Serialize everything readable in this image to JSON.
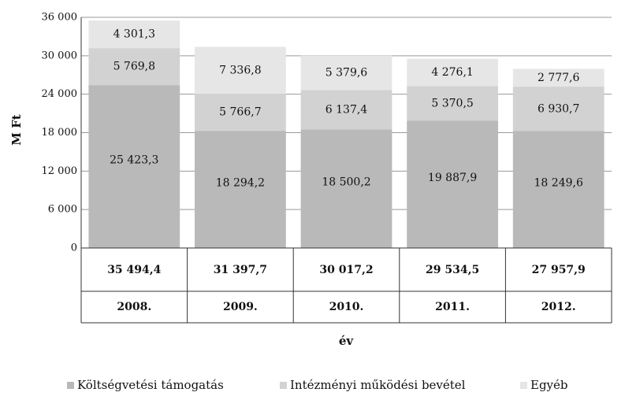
{
  "chart_data": {
    "type": "stacked_bar",
    "y_label": "M Ft",
    "x_label": "év",
    "categories": [
      "2008.",
      "2009.",
      "2010.",
      "2011.",
      "2012."
    ],
    "series": [
      {
        "name": "Költségvetési támogatás",
        "color": "#b9b9b9",
        "values": [
          25423.3,
          18294.2,
          18500.2,
          19887.9,
          18249.6
        ],
        "value_labels": [
          "25 423,3",
          "18 294,2",
          "18 500,2",
          "19 887,9",
          "18 249,6"
        ]
      },
      {
        "name": "Intézményi működési bevétel",
        "color": "#d2d2d2",
        "values": [
          5769.8,
          5766.7,
          6137.4,
          5370.5,
          6930.7
        ],
        "value_labels": [
          "5 769,8",
          "5 766,7",
          "6 137,4",
          "5 370,5",
          "6 930,7"
        ]
      },
      {
        "name": "Egyéb",
        "color": "#e6e6e6",
        "values": [
          4301.3,
          7336.8,
          5379.6,
          4276.1,
          2777.6
        ],
        "value_labels": [
          "4 301,3",
          "7 336,8",
          "5 379,6",
          "4 276,1",
          "2 777,6"
        ]
      }
    ],
    "totals": {
      "values": [
        35494.4,
        31397.7,
        30017.2,
        29534.5,
        27957.9
      ],
      "value_labels": [
        "35 494,4",
        "31 397,7",
        "30 017,2",
        "29 534,5",
        "27 957,9"
      ]
    },
    "ylim": [
      0,
      36000
    ],
    "yticks": [
      0,
      {
        "value": 6000,
        "label": "6 000"
      },
      {
        "value": 12000,
        "label": "12 000"
      },
      {
        "value": 18000,
        "label": "18 000"
      },
      {
        "value": 24000,
        "label": "24 000"
      },
      {
        "value": 30000,
        "label": "30 000"
      },
      {
        "value": 36000,
        "label": "36 000"
      }
    ],
    "grid": true,
    "legend": "bottom"
  }
}
